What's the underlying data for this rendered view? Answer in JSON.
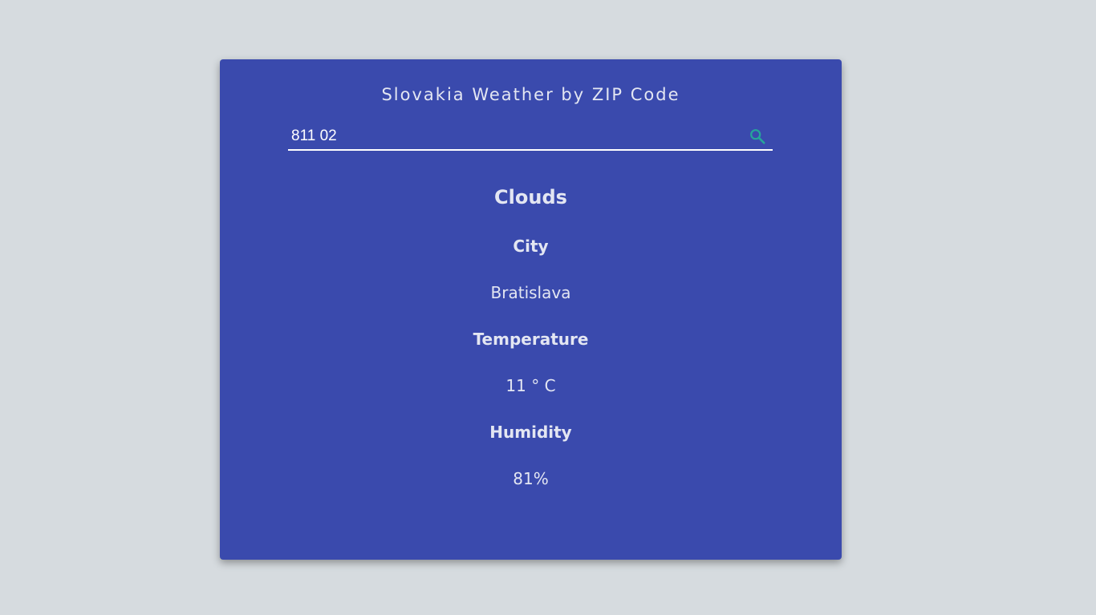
{
  "app": {
    "title": "Slovakia Weather by ZIP Code"
  },
  "search": {
    "value": "811 02",
    "icon": "search-icon",
    "icon_color": "#26a69a"
  },
  "weather": {
    "condition": "Clouds",
    "city_label": "City",
    "city_value": "Bratislava",
    "temperature_label": "Temperature",
    "temperature_value": "11 ° C",
    "humidity_label": "Humidity",
    "humidity_value": "81%"
  },
  "colors": {
    "background": "#d6dbdf",
    "card": "#3a4aad",
    "text": "#e3e6f2"
  }
}
